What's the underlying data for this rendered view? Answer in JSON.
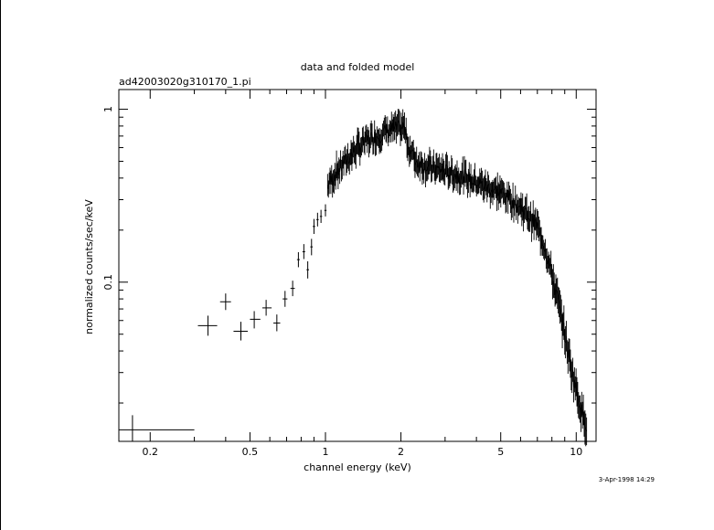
{
  "chart_data": {
    "type": "scatter",
    "title": "data and folded model",
    "subtitle": "ad42003020g310170_1.pi",
    "xlabel": "channel energy (keV)",
    "ylabel": "normalized counts/sec/keV",
    "timestamp": "3-Apr-1998 14:29",
    "x_scale": "log",
    "y_scale": "log",
    "xlim": [
      0.15,
      12
    ],
    "ylim": [
      0.012,
      1.3
    ],
    "x_tick_labels": [
      "0.2",
      "0.5",
      "1",
      "2",
      "5",
      "10"
    ],
    "x_tick_values": [
      0.2,
      0.5,
      1,
      2,
      5,
      10
    ],
    "y_tick_labels": [
      "0.1",
      "1"
    ],
    "y_tick_values": [
      0.1,
      1
    ],
    "grid": false,
    "legend": "none",
    "line_color": "#000000",
    "series": [
      {
        "points": [
          {
            "x": 0.17,
            "y": 0.014,
            "xlo": 0.15,
            "xhi": 0.3,
            "ylo": 0.012,
            "yhi": 0.017
          },
          {
            "x": 0.34,
            "y": 0.056,
            "xlo": 0.31,
            "xhi": 0.37,
            "ylo": 0.049,
            "yhi": 0.064
          },
          {
            "x": 0.4,
            "y": 0.077,
            "xlo": 0.38,
            "xhi": 0.42,
            "ylo": 0.069,
            "yhi": 0.086
          },
          {
            "x": 0.46,
            "y": 0.052,
            "xlo": 0.43,
            "xhi": 0.49,
            "ylo": 0.046,
            "yhi": 0.059
          },
          {
            "x": 0.52,
            "y": 0.061,
            "xlo": 0.5,
            "xhi": 0.55,
            "ylo": 0.054,
            "yhi": 0.068
          },
          {
            "x": 0.58,
            "y": 0.071,
            "xlo": 0.56,
            "xhi": 0.61,
            "ylo": 0.064,
            "yhi": 0.079
          },
          {
            "x": 0.64,
            "y": 0.058,
            "xlo": 0.62,
            "xhi": 0.66,
            "ylo": 0.052,
            "yhi": 0.065
          },
          {
            "x": 0.69,
            "y": 0.08,
            "xlo": 0.675,
            "xhi": 0.705,
            "ylo": 0.072,
            "yhi": 0.089
          },
          {
            "x": 0.74,
            "y": 0.092,
            "xlo": 0.725,
            "xhi": 0.755,
            "ylo": 0.083,
            "yhi": 0.102
          },
          {
            "x": 0.78,
            "y": 0.135,
            "xlo": 0.77,
            "xhi": 0.79,
            "ylo": 0.122,
            "yhi": 0.149
          },
          {
            "x": 0.82,
            "y": 0.15,
            "xlo": 0.81,
            "xhi": 0.83,
            "ylo": 0.136,
            "yhi": 0.166
          },
          {
            "x": 0.85,
            "y": 0.118,
            "xlo": 0.84,
            "xhi": 0.86,
            "ylo": 0.105,
            "yhi": 0.132
          },
          {
            "x": 0.88,
            "y": 0.16,
            "xlo": 0.87,
            "xhi": 0.89,
            "ylo": 0.143,
            "yhi": 0.178
          },
          {
            "x": 0.9,
            "y": 0.21,
            "xlo": 0.89,
            "xhi": 0.91,
            "ylo": 0.19,
            "yhi": 0.232
          },
          {
            "x": 0.93,
            "y": 0.23,
            "xlo": 0.92,
            "xhi": 0.94,
            "ylo": 0.21,
            "yhi": 0.252
          },
          {
            "x": 0.96,
            "y": 0.24,
            "xlo": 0.95,
            "xhi": 0.97,
            "ylo": 0.22,
            "yhi": 0.262
          },
          {
            "x": 1.0,
            "y": 0.26,
            "xlo": 0.99,
            "xhi": 1.01,
            "ylo": 0.24,
            "yhi": 0.282
          }
        ],
        "dense_curve": [
          [
            1.02,
            0.36
          ],
          [
            1.1,
            0.43
          ],
          [
            1.2,
            0.5
          ],
          [
            1.3,
            0.57
          ],
          [
            1.4,
            0.63
          ],
          [
            1.5,
            0.67
          ],
          [
            1.6,
            0.7
          ],
          [
            1.8,
            0.76
          ],
          [
            2.0,
            0.78
          ],
          [
            2.05,
            0.8
          ],
          [
            2.15,
            0.6
          ],
          [
            2.3,
            0.5
          ],
          [
            2.6,
            0.46
          ],
          [
            3.0,
            0.44
          ],
          [
            3.5,
            0.41
          ],
          [
            4.0,
            0.38
          ],
          [
            4.5,
            0.35
          ],
          [
            5.0,
            0.33
          ],
          [
            5.5,
            0.3
          ],
          [
            6.0,
            0.27
          ],
          [
            6.5,
            0.24
          ],
          [
            7.0,
            0.21
          ],
          [
            7.5,
            0.16
          ],
          [
            8.0,
            0.11
          ],
          [
            8.5,
            0.075
          ],
          [
            9.0,
            0.05
          ],
          [
            9.5,
            0.033
          ],
          [
            10.0,
            0.024
          ],
          [
            10.5,
            0.018
          ],
          [
            11.0,
            0.015
          ]
        ]
      }
    ]
  }
}
